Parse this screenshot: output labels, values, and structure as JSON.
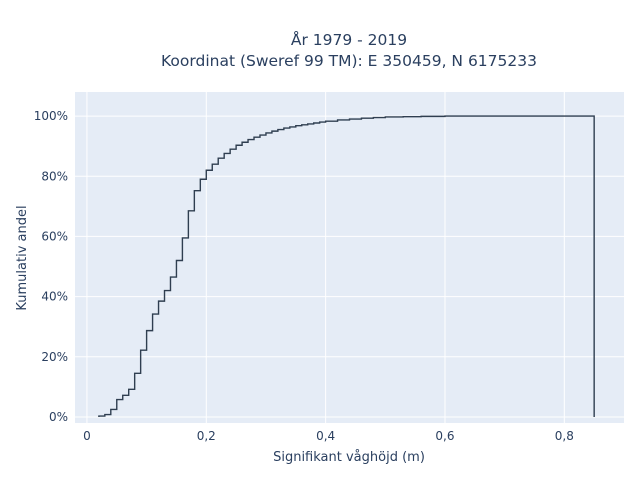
{
  "chart_data": {
    "type": "line",
    "line_shape": "step",
    "title_lines": [
      "År 1979 - 2019",
      "Koordinat (Sweref 99 TM): E 350459, N 6175233"
    ],
    "xlabel": "Signifikant våghöjd (m)",
    "ylabel": "Kumulativ andel",
    "xlim": [
      -0.02,
      0.9
    ],
    "ylim": [
      -0.02,
      1.08
    ],
    "x_ticks": [
      0,
      0.2,
      0.4,
      0.6,
      0.8
    ],
    "x_tick_labels": [
      "0",
      "0,2",
      "0,4",
      "0,6",
      "0,8"
    ],
    "y_ticks": [
      0,
      0.2,
      0.4,
      0.6,
      0.8,
      1.0
    ],
    "y_tick_labels": [
      "0%",
      "20%",
      "40%",
      "60%",
      "80%",
      "100%"
    ],
    "grid": true,
    "colors": {
      "plot_bg": "#e5ecf6",
      "grid": "#ffffff",
      "line": "#2f3e50",
      "text": "#2a3f5f"
    },
    "series": [
      {
        "x": [
          0.02,
          0.03,
          0.04,
          0.05,
          0.06,
          0.07,
          0.08,
          0.09,
          0.1,
          0.11,
          0.12,
          0.13,
          0.14,
          0.15,
          0.16,
          0.17,
          0.18,
          0.19,
          0.2,
          0.21,
          0.22,
          0.23,
          0.24,
          0.25,
          0.26,
          0.27,
          0.28,
          0.29,
          0.3,
          0.31,
          0.32,
          0.33,
          0.34,
          0.35,
          0.36,
          0.37,
          0.38,
          0.39,
          0.4,
          0.42,
          0.44,
          0.46,
          0.48,
          0.5,
          0.53,
          0.56,
          0.6,
          0.65,
          0.7,
          0.85
        ],
        "y": [
          0.003,
          0.008,
          0.025,
          0.058,
          0.072,
          0.092,
          0.145,
          0.222,
          0.287,
          0.342,
          0.385,
          0.42,
          0.465,
          0.52,
          0.595,
          0.685,
          0.752,
          0.79,
          0.82,
          0.84,
          0.86,
          0.876,
          0.89,
          0.903,
          0.913,
          0.922,
          0.93,
          0.937,
          0.944,
          0.95,
          0.955,
          0.96,
          0.964,
          0.968,
          0.971,
          0.974,
          0.977,
          0.98,
          0.983,
          0.987,
          0.99,
          0.993,
          0.995,
          0.997,
          0.998,
          0.999,
          1.0,
          1.0,
          1.0,
          1.0
        ]
      }
    ]
  }
}
